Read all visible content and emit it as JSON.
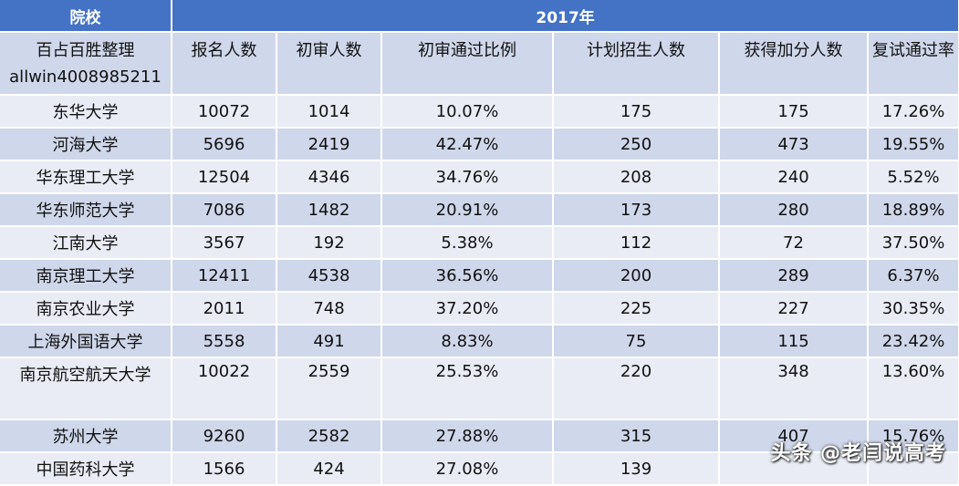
{
  "header": {
    "col_school": "院校",
    "year": "2017年"
  },
  "subheader": {
    "org_line1": "百占百胜整理",
    "org_line2": "allwin4008985211",
    "columns": [
      "报名人数",
      "初审人数",
      "初审通过比例",
      "计划招生人数",
      "获得加分人数",
      "复试通过率"
    ]
  },
  "rows": [
    {
      "school": "东华大学",
      "values": [
        "10072",
        "1014",
        "10.07%",
        "175",
        "175",
        "17.26%"
      ]
    },
    {
      "school": "河海大学",
      "values": [
        "5696",
        "2419",
        "42.47%",
        "250",
        "473",
        "19.55%"
      ]
    },
    {
      "school": "华东理工大学",
      "values": [
        "12504",
        "4346",
        "34.76%",
        "208",
        "240",
        "5.52%"
      ]
    },
    {
      "school": "华东师范大学",
      "values": [
        "7086",
        "1482",
        "20.91%",
        "173",
        "280",
        "18.89%"
      ]
    },
    {
      "school": "江南大学",
      "values": [
        "3567",
        "192",
        "5.38%",
        "112",
        "72",
        "37.50%"
      ]
    },
    {
      "school": "南京理工大学",
      "values": [
        "12411",
        "4538",
        "36.56%",
        "200",
        "289",
        "6.37%"
      ]
    },
    {
      "school": "南京农业大学",
      "values": [
        "2011",
        "748",
        "37.20%",
        "225",
        "227",
        "30.35%"
      ]
    },
    {
      "school": "上海外国语大学",
      "values": [
        "5558",
        "491",
        "8.83%",
        "75",
        "115",
        "23.42%"
      ]
    },
    {
      "school": "南京航空航天大学",
      "values": [
        "10022",
        "2559",
        "25.53%",
        "220",
        "348",
        "13.60%"
      ]
    },
    {
      "school": "苏州大学",
      "values": [
        "9260",
        "2582",
        "27.88%",
        "315",
        "407",
        "15.76%"
      ]
    },
    {
      "school": "中国药科大学",
      "values": [
        "1566",
        "424",
        "27.08%",
        "139",
        "",
        ""
      ]
    }
  ],
  "watermark": "头条 @老闫说高考"
}
